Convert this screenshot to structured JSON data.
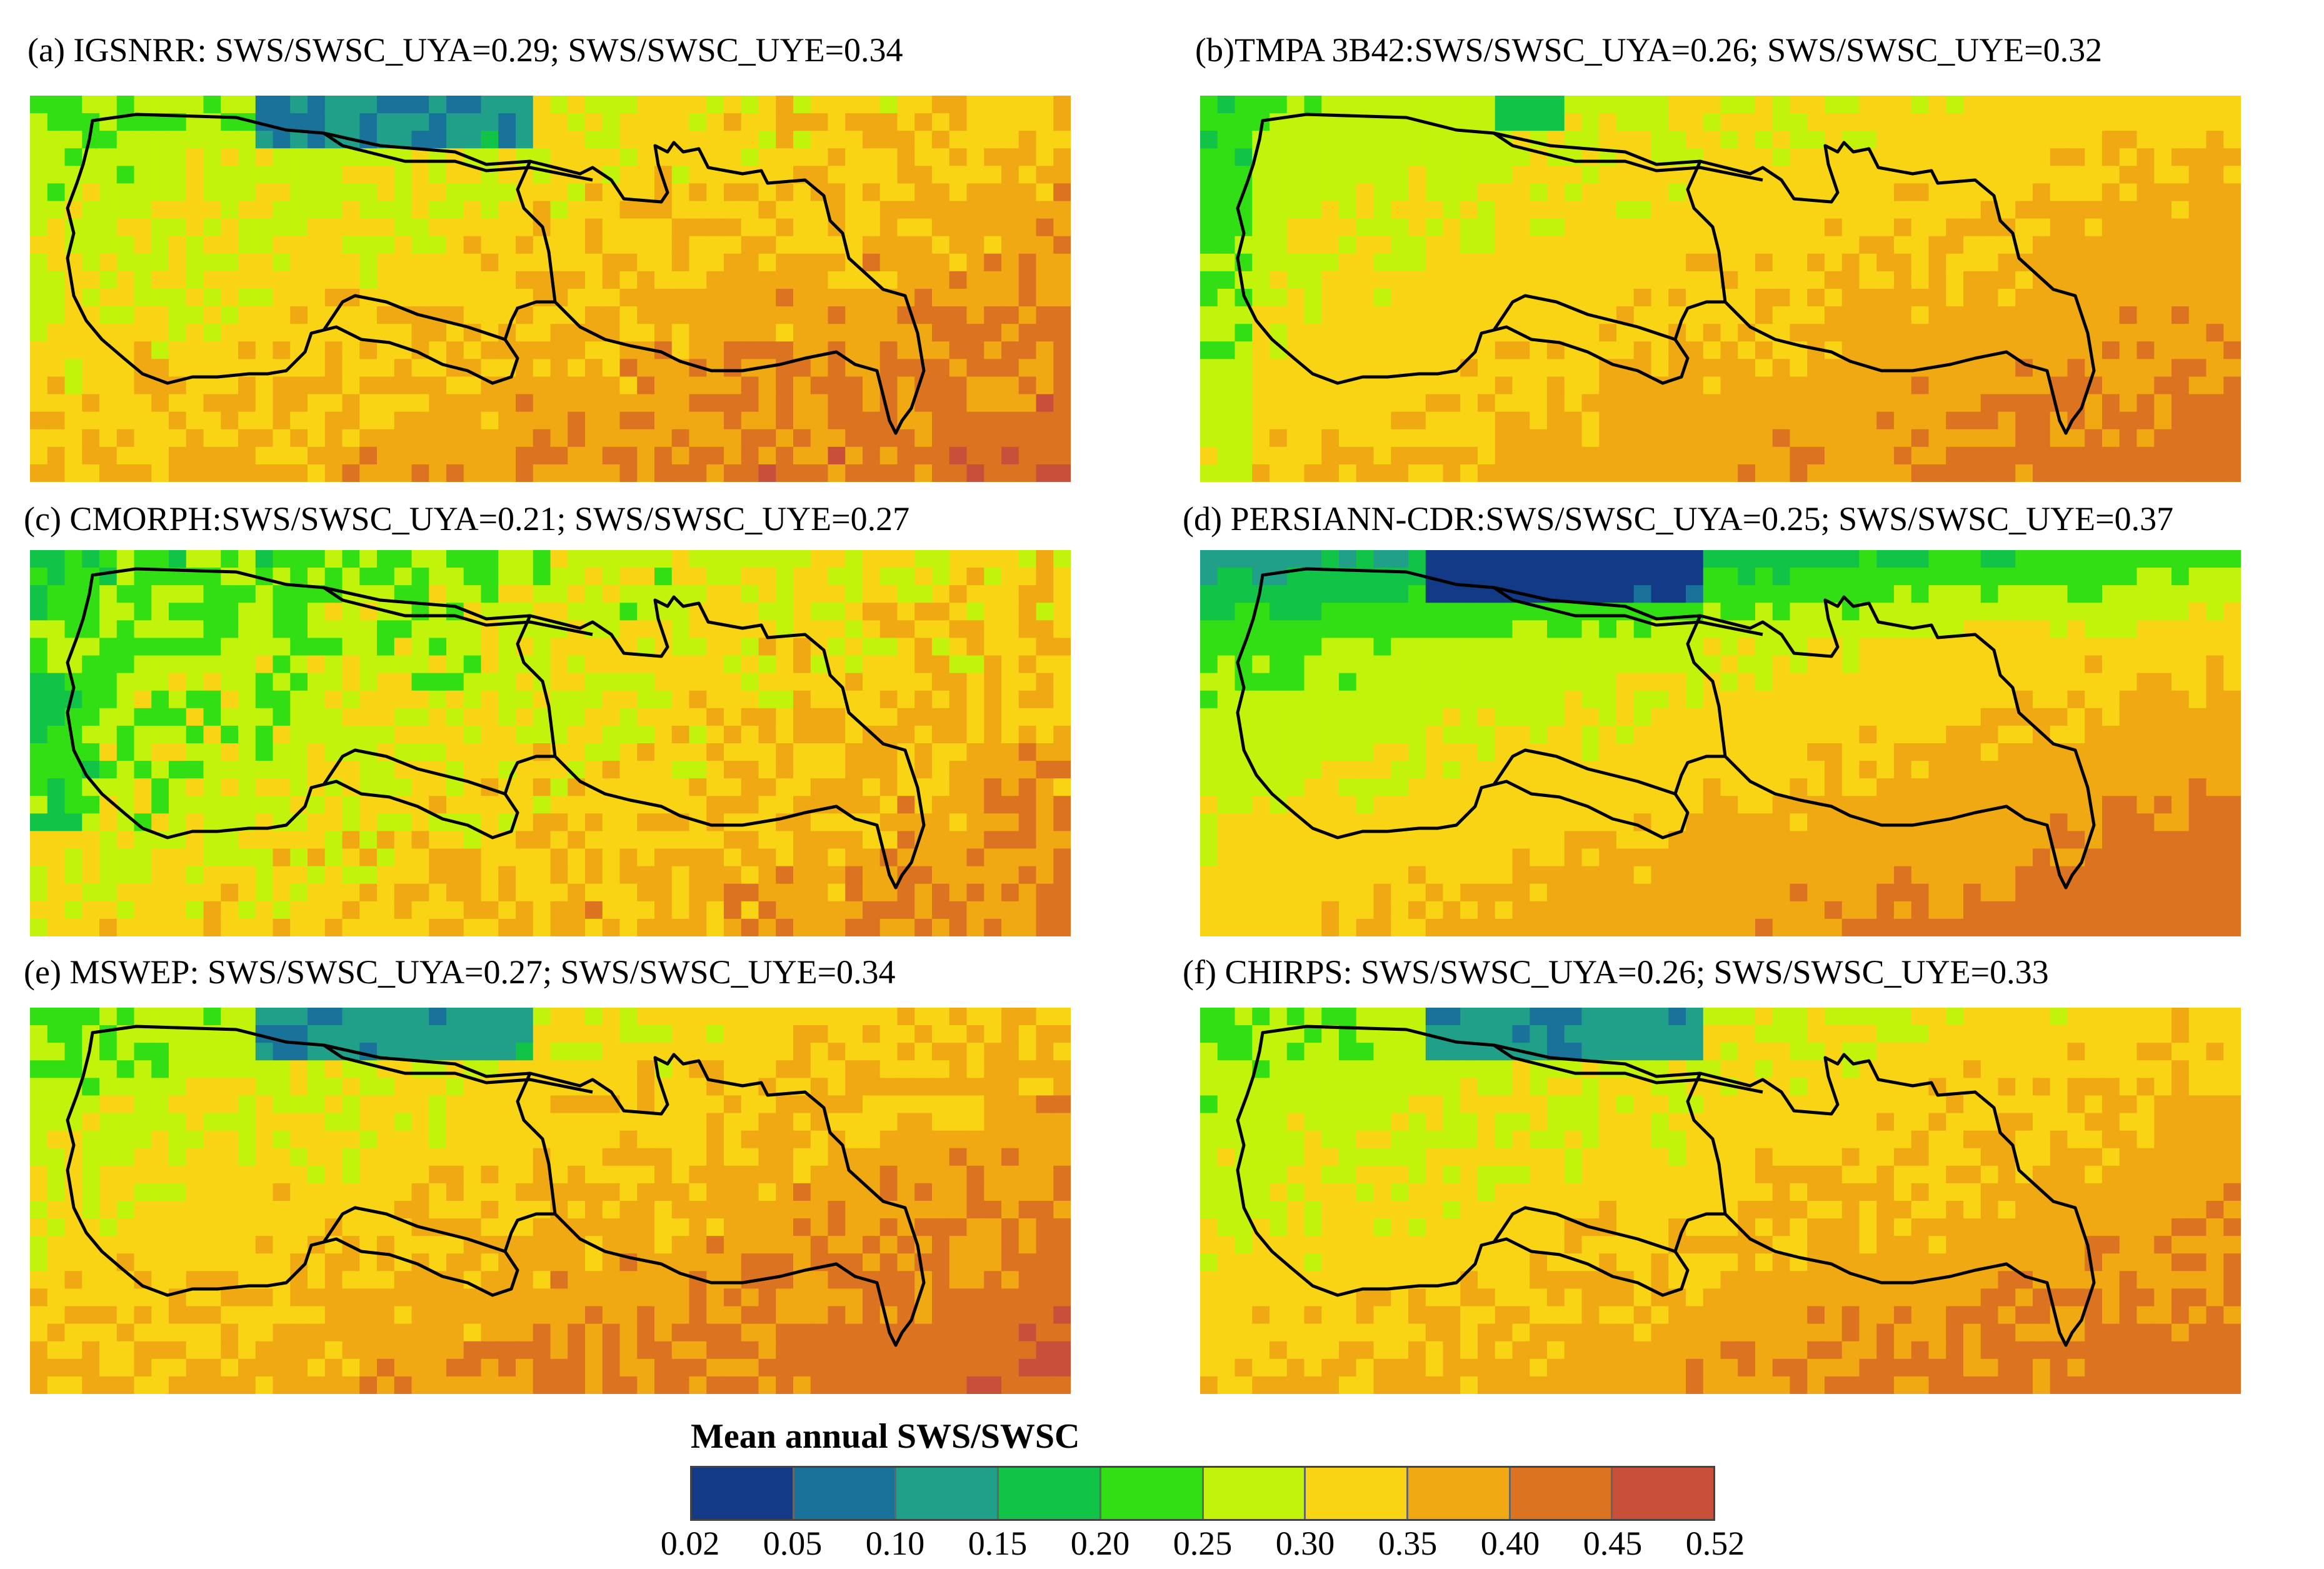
{
  "chart_data": {
    "type": "heatmap",
    "colorbar": {
      "title": "Mean annual SWS/SWSC",
      "ticks": [
        "0.02",
        "0.05",
        "0.10",
        "0.15",
        "0.20",
        "0.25",
        "0.30",
        "0.35",
        "0.40",
        "0.45",
        "0.52"
      ],
      "bins": [
        0.02,
        0.05,
        0.1,
        0.15,
        0.2,
        0.25,
        0.3,
        0.35,
        0.4,
        0.45,
        0.52
      ],
      "colors": [
        "#123a86",
        "#19729a",
        "#20a088",
        "#11c447",
        "#32de14",
        "#c2f40b",
        "#f8d414",
        "#f0a813",
        "#db7321",
        "#c8503a"
      ]
    },
    "panels": [
      {
        "id": "a",
        "label": "(a) IGSNRR:  SWS/SWSC_UYA=0.29; SWS/SWSC_UYE=0.34",
        "UYA": 0.29,
        "UYE": 0.34
      },
      {
        "id": "b",
        "label": "(b)TMPA 3B42:SWS/SWSC_UYA=0.26; SWS/SWSC_UYE=0.32",
        "UYA": 0.26,
        "UYE": 0.32
      },
      {
        "id": "c",
        "label": "(c) CMORPH:SWS/SWSC_UYA=0.21; SWS/SWSC_UYE=0.27",
        "UYA": 0.21,
        "UYE": 0.27
      },
      {
        "id": "d",
        "label": "(d) PERSIANN-CDR:SWS/SWSC_UYA=0.25; SWS/SWSC_UYE=0.37",
        "UYA": 0.25,
        "UYE": 0.37
      },
      {
        "id": "e",
        "label": "(e) MSWEP: SWS/SWSC_UYA=0.27; SWS/SWSC_UYE=0.34",
        "UYA": 0.27,
        "UYE": 0.34
      },
      {
        "id": "f",
        "label": "(f) CHIRPS:  SWS/SWSC_UYA=0.26; SWS/SWSC_UYE=0.33",
        "UYA": 0.26,
        "UYE": 0.33
      }
    ]
  }
}
